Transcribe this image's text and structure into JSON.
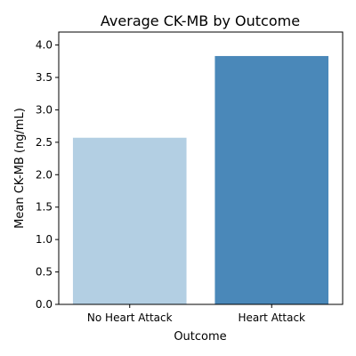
{
  "chart_data": {
    "type": "bar",
    "title": "Average CK-MB by Outcome",
    "xlabel": "Outcome",
    "ylabel": "Mean CK-MB (ng/mL)",
    "categories": [
      "No Heart Attack",
      "Heart Attack"
    ],
    "values": [
      2.57,
      3.83
    ],
    "ylim": [
      0,
      4.2
    ],
    "yticks": [
      "0.0",
      "0.5",
      "1.0",
      "1.5",
      "2.0",
      "2.5",
      "3.0",
      "3.5",
      "4.0"
    ],
    "colors": [
      "#b3cfe3",
      "#4a88b9"
    ],
    "grid": false,
    "legend": "none"
  }
}
